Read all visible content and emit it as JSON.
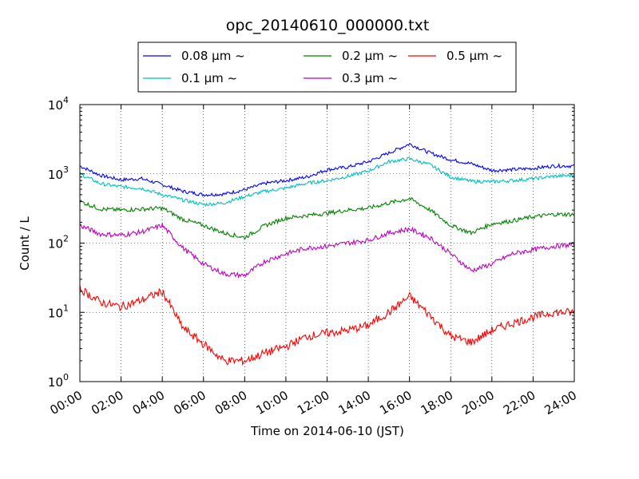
{
  "chart_data": {
    "type": "line",
    "title": "opc_20140610_000000.txt",
    "xlabel": "Time on 2014-06-10 (JST)",
    "ylabel": "Count / L",
    "x_ticks": [
      "00:00",
      "02:00",
      "04:00",
      "06:00",
      "08:00",
      "10:00",
      "12:00",
      "14:00",
      "16:00",
      "18:00",
      "20:00",
      "22:00",
      "24:00"
    ],
    "y_scale": "log",
    "ylim": [
      1,
      10000
    ],
    "y_ticks": [
      {
        "base": "10",
        "exp": "0"
      },
      {
        "base": "10",
        "exp": "1"
      },
      {
        "base": "10",
        "exp": "2"
      },
      {
        "base": "10",
        "exp": "3"
      },
      {
        "base": "10",
        "exp": "4"
      }
    ],
    "grid": true,
    "legend_position": "top-center, above plot",
    "x_hours": [
      0,
      1,
      2,
      3,
      4,
      5,
      6,
      7,
      8,
      9,
      10,
      11,
      12,
      13,
      14,
      15,
      16,
      17,
      18,
      19,
      20,
      21,
      22,
      23,
      24
    ],
    "series": [
      {
        "name": "0.08 μm ~",
        "color": "#0000ff",
        "values": [
          1300,
          950,
          820,
          850,
          700,
          560,
          500,
          510,
          590,
          730,
          800,
          900,
          1150,
          1250,
          1500,
          2000,
          2700,
          2000,
          1600,
          1400,
          1120,
          1150,
          1200,
          1300,
          1300
        ]
      },
      {
        "name": "0.1 μm ~",
        "color": "#00bfbf",
        "values": [
          1000,
          720,
          650,
          620,
          500,
          420,
          360,
          380,
          470,
          560,
          620,
          730,
          800,
          920,
          1100,
          1500,
          1650,
          1350,
          900,
          780,
          770,
          800,
          850,
          920,
          950
        ]
      },
      {
        "name": "0.2 μm ~",
        "color": "#008000",
        "values": [
          400,
          310,
          300,
          310,
          320,
          220,
          180,
          140,
          120,
          180,
          230,
          250,
          270,
          300,
          320,
          380,
          440,
          300,
          180,
          140,
          190,
          210,
          240,
          260,
          260
        ]
      },
      {
        "name": "0.3 μm ~",
        "color": "#bf00bf",
        "values": [
          180,
          135,
          130,
          145,
          180,
          85,
          50,
          36,
          34,
          55,
          70,
          85,
          90,
          100,
          110,
          140,
          160,
          120,
          70,
          40,
          50,
          70,
          80,
          90,
          95
        ]
      },
      {
        "name": "0.5 μm ~",
        "color": "#ff0000",
        "values": [
          22,
          14,
          12,
          15,
          20,
          6,
          3.5,
          2.0,
          2.0,
          2.6,
          3.2,
          4.5,
          5.0,
          5.5,
          6.5,
          10,
          17,
          9,
          4.5,
          3.7,
          5.5,
          7.0,
          8.5,
          10,
          10
        ]
      }
    ]
  }
}
